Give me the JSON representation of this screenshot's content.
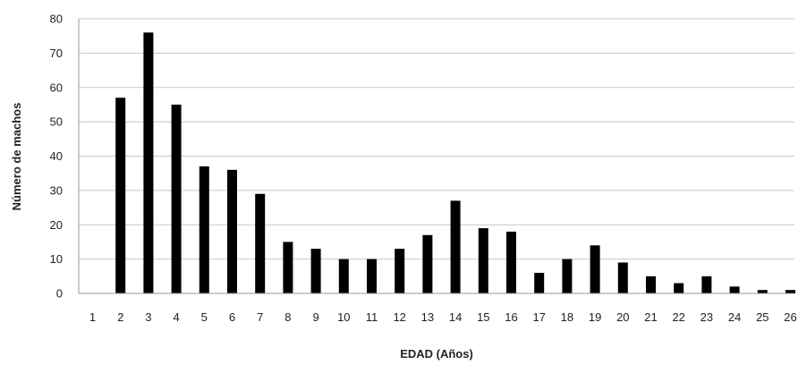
{
  "chart_data": {
    "type": "bar",
    "categories": [
      "1",
      "2",
      "3",
      "4",
      "5",
      "6",
      "7",
      "8",
      "9",
      "10",
      "11",
      "12",
      "13",
      "14",
      "15",
      "16",
      "17",
      "18",
      "19",
      "20",
      "21",
      "22",
      "23",
      "24",
      "25",
      "26"
    ],
    "values": [
      0,
      57,
      76,
      55,
      37,
      36,
      29,
      15,
      13,
      10,
      10,
      13,
      17,
      27,
      19,
      18,
      6,
      10,
      14,
      9,
      5,
      3,
      5,
      2,
      1,
      1
    ],
    "xlabel": "EDAD (Años)",
    "ylabel": "Número de machos",
    "ylim": [
      0,
      80
    ],
    "yticks": [
      0,
      10,
      20,
      30,
      40,
      50,
      60,
      70,
      80
    ],
    "grid": true,
    "bar_color": "#000000",
    "grid_color": "#c8c8c8"
  }
}
